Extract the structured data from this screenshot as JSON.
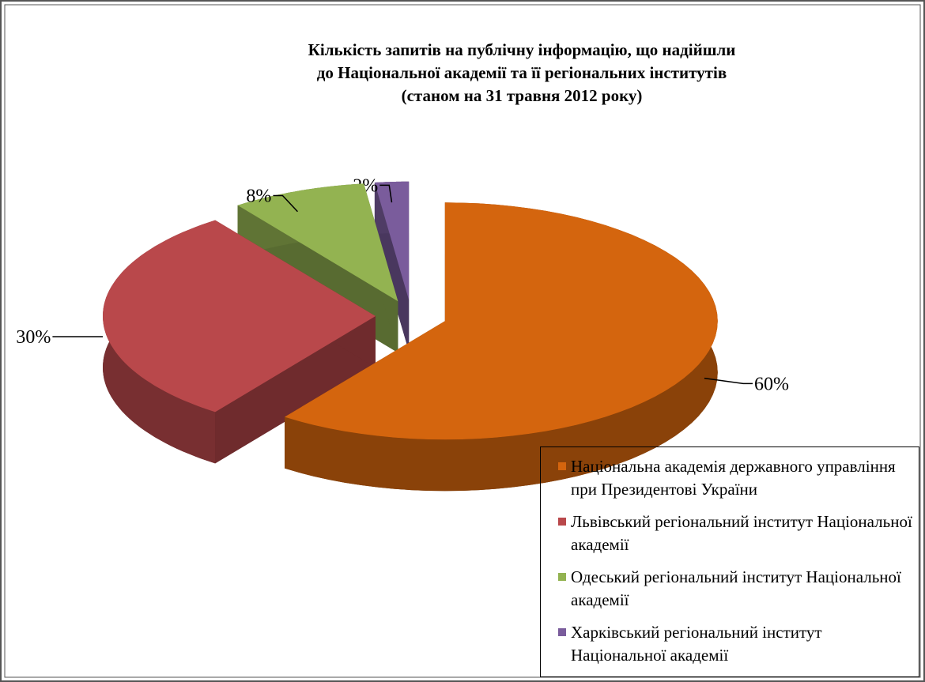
{
  "chart_data": {
    "type": "pie",
    "title": [
      "Кількість запитів на публічну інформацію, що надійшли",
      "до Національної академії та її регіональних інститутів",
      "(станом на 31 травня 2012 року)"
    ],
    "categories": [
      "Національна академія державного управління при Президентові України",
      "Львівський регіональний інститут Національної академії",
      "Одеський регіональний інститут Національної академії",
      "Харківський регіональний інститут Національної академії"
    ],
    "values": [
      60,
      30,
      8,
      2
    ],
    "value_labels": [
      "60%",
      "30%",
      "8%",
      "2%"
    ],
    "colors": [
      "#d4650e",
      "#b9484b",
      "#93b351",
      "#7a5c9c"
    ],
    "legend": "bottom-right"
  }
}
